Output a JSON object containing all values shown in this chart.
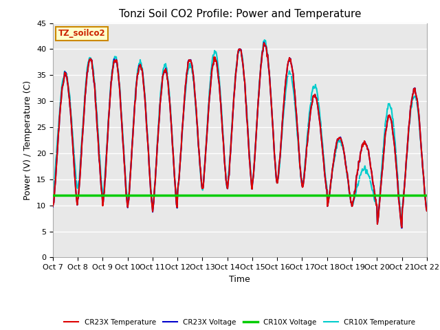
{
  "title": "Tonzi Soil CO2 Profile: Power and Temperature",
  "ylabel": "Power (V) / Temperature (C)",
  "xlabel": "Time",
  "ylim": [
    0,
    45
  ],
  "annotation": "TZ_soilco2",
  "x_tick_labels": [
    "Oct 7",
    "Oct 8",
    "Oct 9",
    "Oct 10",
    "Oct 11",
    "Oct 12",
    "Oct 13",
    "Oct 14",
    "Oct 15",
    "Oct 16",
    "Oct 17",
    "Oct 18",
    "Oct 19",
    "Oct 20",
    "Oct 21",
    "Oct 22"
  ],
  "legend": [
    {
      "label": "CR23X Temperature",
      "color": "#dd0000",
      "lw": 1.5
    },
    {
      "label": "CR23X Voltage",
      "color": "#0000cc",
      "lw": 1.5
    },
    {
      "label": "CR10X Voltage",
      "color": "#00cc00",
      "lw": 2.5
    },
    {
      "label": "CR10X Temperature",
      "color": "#00cccc",
      "lw": 1.5
    }
  ],
  "cr10x_voltage": 12.0,
  "plot_bg": "#e8e8e8",
  "title_fontsize": 11,
  "axis_fontsize": 9,
  "tick_fontsize": 8,
  "peak_heights_red": [
    35,
    38,
    38,
    37,
    36,
    38,
    38,
    40,
    41,
    38,
    31,
    23,
    22,
    27,
    32
  ],
  "valley_heights_red": [
    9.5,
    11,
    10,
    9.5,
    9,
    13,
    13,
    13,
    14,
    14,
    13,
    10,
    10,
    6,
    9
  ],
  "peak_heights_cyan": [
    35.5,
    38.5,
    38.5,
    37.5,
    37,
    37,
    39.5,
    40,
    41.5,
    35.5,
    33,
    22.5,
    17,
    29.5,
    31
  ],
  "valley_heights_cyan": [
    12.5,
    13,
    11,
    10,
    9,
    13,
    13,
    14,
    14,
    14,
    13.5,
    10,
    10,
    6.5,
    9.5
  ]
}
